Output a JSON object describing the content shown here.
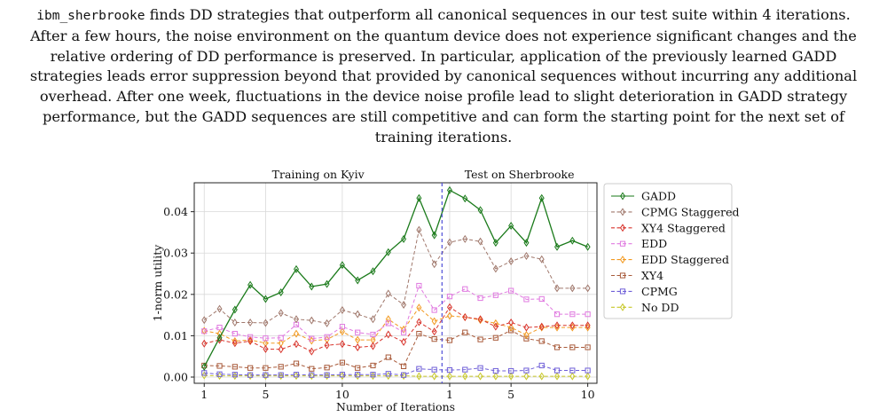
{
  "paragraph": {
    "lines": [
      {
        "code": "ibm_sherbrooke",
        "text": " finds DD strategies that outperform all canonical sequences in our test suite within 4 iterations."
      },
      {
        "code": "",
        "text": "After a few hours, the noise environment on the quantum device does not experience significant changes and the"
      },
      {
        "code": "",
        "text": "relative ordering of DD performance is preserved. In particular, application of the previously learned GADD"
      },
      {
        "code": "",
        "text": "strategies leads error suppression beyond that provided by canonical sequences without incurring any additional"
      },
      {
        "code": "",
        "text": "overhead. After one week, fluctuations in the device noise profile lead to slight deterioration in GADD strategy"
      },
      {
        "code": "",
        "text": "performance, but the GADD sequences are still competitive and can form the starting point for the next set of"
      },
      {
        "code": "",
        "text": "training iterations."
      }
    ]
  },
  "chart_data": {
    "type": "line",
    "sections": [
      "Training on Kyiv",
      "Test on Sherbrooke"
    ],
    "xlabel": "Number of Iterations",
    "ylabel": "1-norm utility",
    "ylim": [
      -0.0015,
      0.047
    ],
    "yticks": [
      "0.00",
      "0.01",
      "0.02",
      "0.03",
      "0.04"
    ],
    "ytick_values": [
      0,
      0.01,
      0.02,
      0.03,
      0.04
    ],
    "xticks": [
      "1",
      "5",
      "10",
      "1",
      "5",
      "10"
    ],
    "xtick_positions": [
      1,
      5,
      10,
      17,
      21,
      26
    ],
    "x": [
      1,
      2,
      3,
      4,
      5,
      6,
      7,
      8,
      9,
      10,
      11,
      12,
      13,
      14,
      15,
      16,
      17,
      18,
      19,
      20,
      21,
      22,
      23,
      24,
      25,
      26
    ],
    "divider_x": 16.5,
    "divider_color": "#4f4fd8",
    "legend_position": "right",
    "series": [
      {
        "name": "GADD",
        "color": "#1a7a1a",
        "dash": "solid",
        "marker": "diamond",
        "values": [
          0.0025,
          0.0095,
          0.0163,
          0.0223,
          0.0189,
          0.0205,
          0.0261,
          0.0219,
          0.0225,
          0.0271,
          0.0234,
          0.0256,
          0.0302,
          0.0334,
          0.0433,
          0.0343,
          0.0452,
          0.0432,
          0.0404,
          0.0325,
          0.0366,
          0.0325,
          0.0433,
          0.0315,
          0.033,
          0.0315
        ]
      },
      {
        "name": "CPMG Staggered",
        "color": "#a0786c",
        "dash": "dashed",
        "marker": "diamond",
        "values": [
          0.0138,
          0.0165,
          0.0132,
          0.0132,
          0.0131,
          0.0155,
          0.014,
          0.0137,
          0.013,
          0.0162,
          0.0152,
          0.014,
          0.0202,
          0.0175,
          0.0356,
          0.0273,
          0.0326,
          0.0334,
          0.0328,
          0.0262,
          0.028,
          0.0293,
          0.0285,
          0.0215,
          0.0215,
          0.0215
        ]
      },
      {
        "name": "XY4 Staggered",
        "color": "#d8342c",
        "dash": "dashed",
        "marker": "diamond",
        "values": [
          0.0081,
          0.009,
          0.0082,
          0.0087,
          0.0068,
          0.0067,
          0.008,
          0.0062,
          0.0077,
          0.008,
          0.0072,
          0.0075,
          0.0103,
          0.0085,
          0.0133,
          0.011,
          0.0169,
          0.0145,
          0.014,
          0.0122,
          0.0132,
          0.012,
          0.0122,
          0.0125,
          0.0125,
          0.0125
        ]
      },
      {
        "name": "EDD",
        "color": "#e07ae0",
        "dash": "dashed",
        "marker": "square",
        "values": [
          0.0111,
          0.012,
          0.0105,
          0.0097,
          0.0094,
          0.0095,
          0.0127,
          0.0093,
          0.0097,
          0.0122,
          0.0108,
          0.0103,
          0.013,
          0.0108,
          0.0221,
          0.0162,
          0.0195,
          0.0213,
          0.0191,
          0.0198,
          0.0209,
          0.0188,
          0.0189,
          0.0152,
          0.0152,
          0.0152
        ]
      },
      {
        "name": "EDD Staggered",
        "color": "#f29a22",
        "dash": "dashed",
        "marker": "diamond",
        "values": [
          0.0112,
          0.0105,
          0.0087,
          0.009,
          0.0082,
          0.0082,
          0.0105,
          0.0088,
          0.0091,
          0.011,
          0.009,
          0.009,
          0.014,
          0.0115,
          0.0168,
          0.0135,
          0.0148,
          0.0145,
          0.0138,
          0.013,
          0.012,
          0.0102,
          0.012,
          0.012,
          0.012,
          0.012
        ]
      },
      {
        "name": "XY4",
        "color": "#a85a3a",
        "dash": "dashed",
        "marker": "square",
        "values": [
          0.0028,
          0.0027,
          0.0025,
          0.0022,
          0.0022,
          0.0025,
          0.0033,
          0.002,
          0.0023,
          0.0035,
          0.0022,
          0.0028,
          0.0048,
          0.0026,
          0.0105,
          0.0092,
          0.0089,
          0.0108,
          0.0091,
          0.0095,
          0.0113,
          0.0093,
          0.0087,
          0.0072,
          0.0072,
          0.0072
        ]
      },
      {
        "name": "CPMG",
        "color": "#6f5fd8",
        "dash": "dashed",
        "marker": "square",
        "values": [
          0.001,
          0.0007,
          0.0006,
          0.0005,
          0.0005,
          0.0005,
          0.0006,
          0.0005,
          0.0005,
          0.0006,
          0.0006,
          0.0006,
          0.0008,
          0.0005,
          0.002,
          0.0018,
          0.0017,
          0.0018,
          0.0022,
          0.0015,
          0.0015,
          0.0016,
          0.0028,
          0.0016,
          0.0016,
          0.0016
        ]
      },
      {
        "name": "No DD",
        "color": "#c8c82a",
        "dash": "dashed",
        "marker": "diamond",
        "values": [
          0.0004,
          0.0003,
          0.0003,
          0.0003,
          0.0003,
          0.0003,
          0.0003,
          0.0003,
          0.0003,
          0.0003,
          0.0003,
          0.0003,
          0.0003,
          0.0003,
          0.0002,
          0.0002,
          0.0002,
          0.0002,
          0.0002,
          0.0002,
          0.0002,
          0.0002,
          0.0002,
          0.0002,
          0.0002,
          0.0002
        ]
      }
    ]
  }
}
